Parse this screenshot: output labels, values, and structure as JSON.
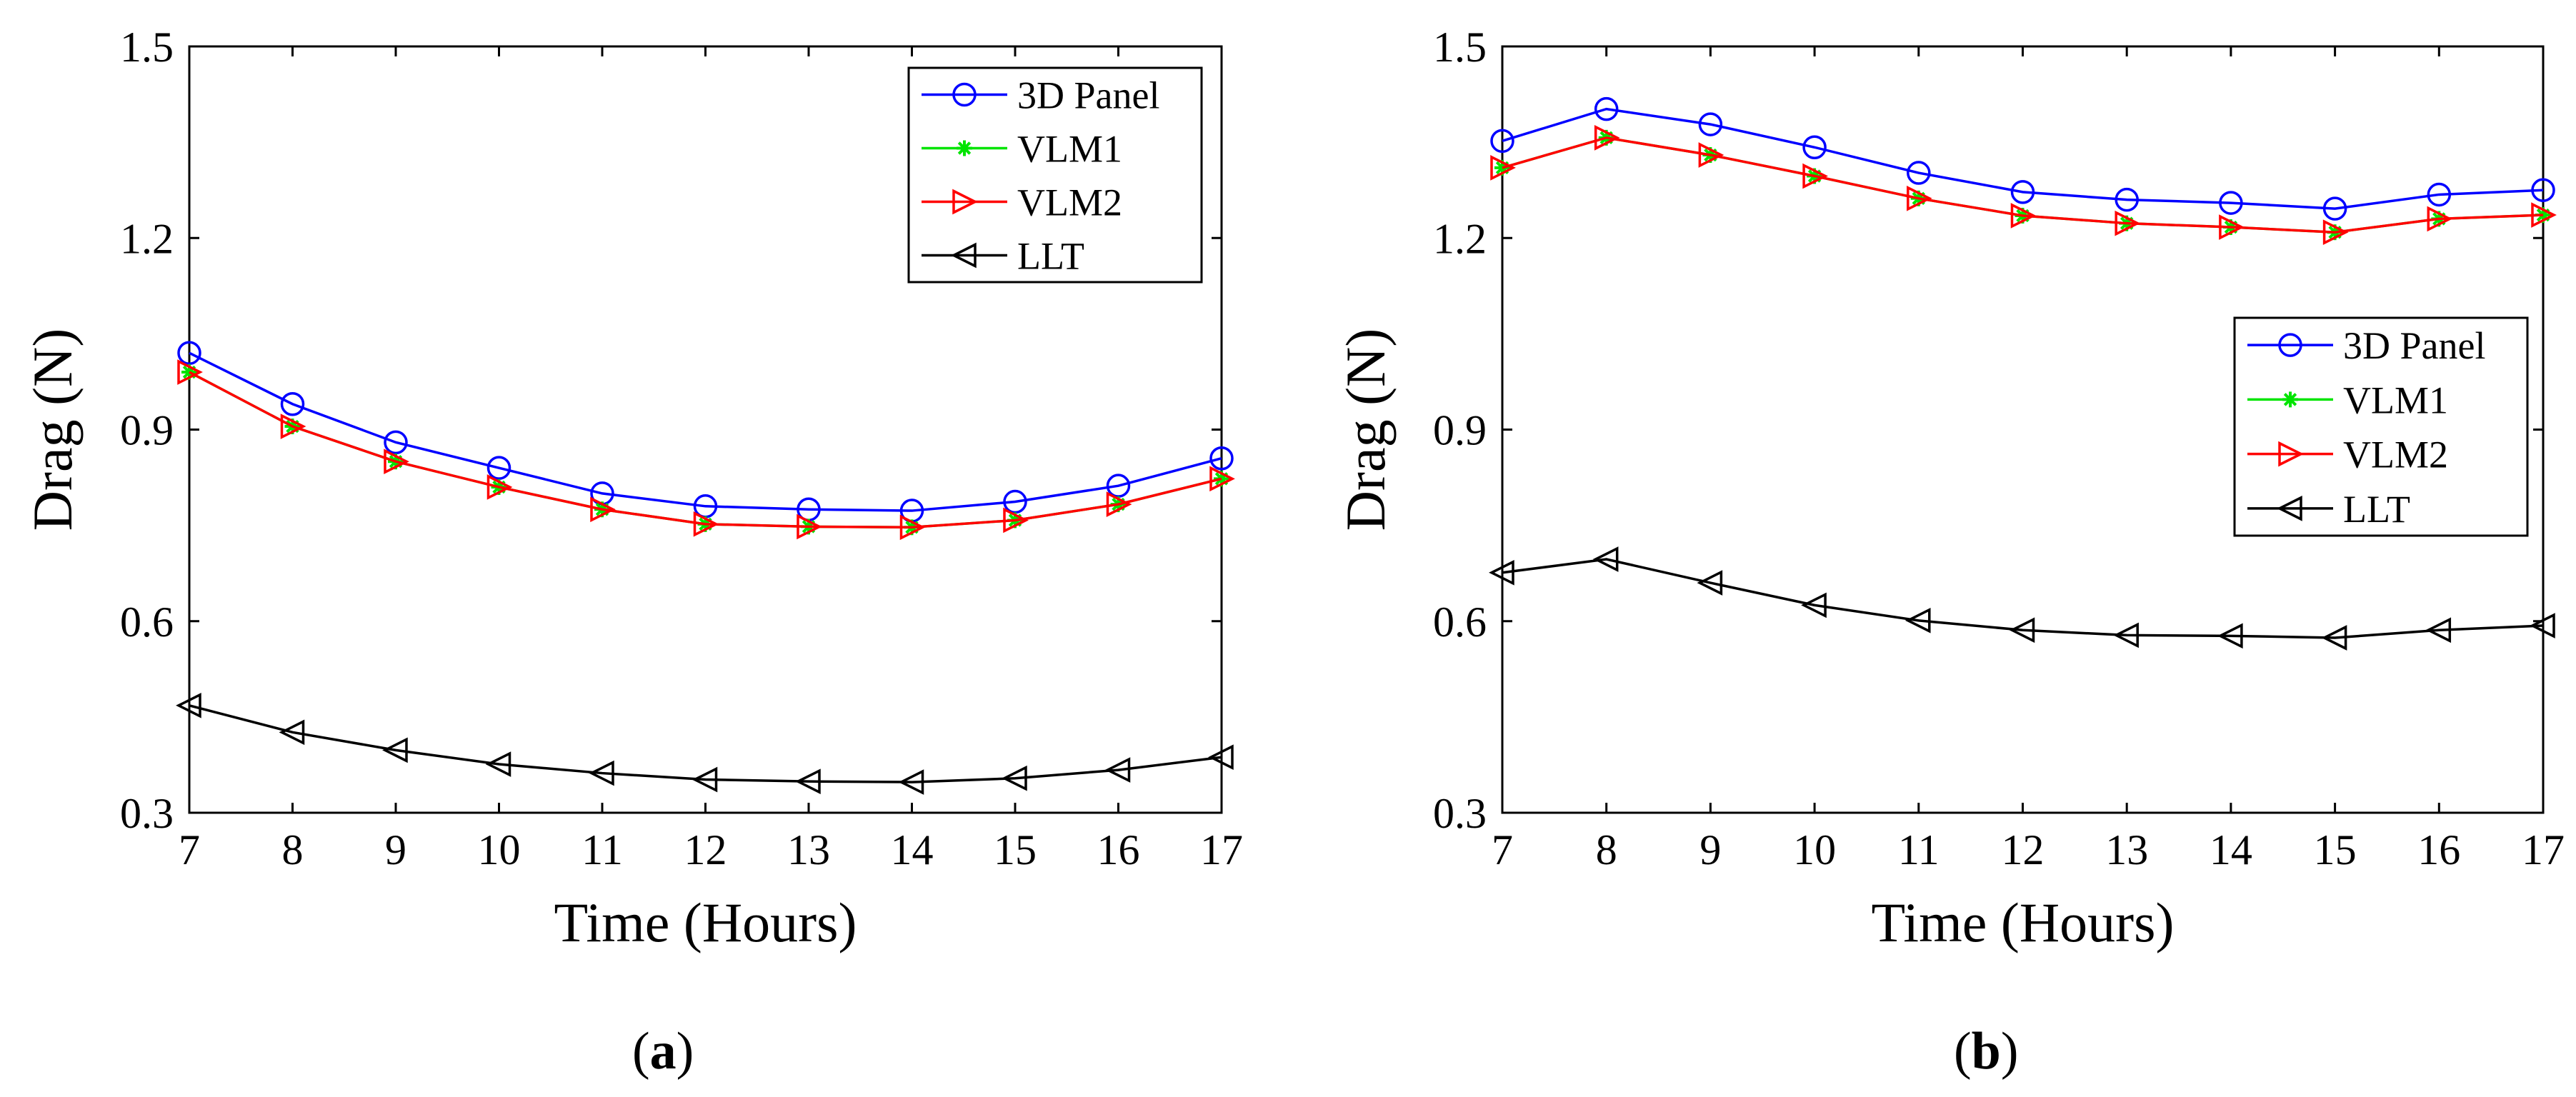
{
  "chart_data": [
    {
      "type": "line",
      "panel_label": "a",
      "caption": "(a)",
      "title": "",
      "xlabel": "Time (Hours)",
      "ylabel": "Drag (N)",
      "xlim": [
        7,
        17
      ],
      "ylim": [
        0.3,
        1.5
      ],
      "xticks": [
        7,
        8,
        9,
        10,
        11,
        12,
        13,
        14,
        15,
        16,
        17
      ],
      "yticks": [
        "0.3",
        "0.6",
        "0.9",
        "1.2",
        "1.5"
      ],
      "legend_position": "top-right",
      "x": [
        7,
        8,
        9,
        10,
        11,
        12,
        13,
        14,
        15,
        16,
        17
      ],
      "series": [
        {
          "name": "3D Panel",
          "color": "#0000ff",
          "marker": "circle",
          "values": [
            1.02,
            0.94,
            0.88,
            0.84,
            0.8,
            0.78,
            0.775,
            0.773,
            0.787,
            0.812,
            0.855
          ]
        },
        {
          "name": "VLM1",
          "color": "#00e400",
          "marker": "star",
          "values": [
            0.99,
            0.905,
            0.85,
            0.81,
            0.775,
            0.752,
            0.748,
            0.747,
            0.758,
            0.783,
            0.823
          ]
        },
        {
          "name": "VLM2",
          "color": "#ff0000",
          "marker": "triangle-right",
          "values": [
            0.99,
            0.905,
            0.85,
            0.81,
            0.775,
            0.752,
            0.748,
            0.747,
            0.758,
            0.783,
            0.823
          ]
        },
        {
          "name": "LLT",
          "color": "#000000",
          "marker": "triangle-left",
          "values": [
            0.468,
            0.426,
            0.398,
            0.376,
            0.362,
            0.352,
            0.349,
            0.348,
            0.354,
            0.367,
            0.387
          ]
        }
      ]
    },
    {
      "type": "line",
      "panel_label": "b",
      "caption": "(b)",
      "title": "",
      "xlabel": "Time (Hours)",
      "ylabel": "Drag (N)",
      "xlim": [
        7,
        17
      ],
      "ylim": [
        0.3,
        1.5
      ],
      "xticks": [
        7,
        8,
        9,
        10,
        11,
        12,
        13,
        14,
        15,
        16,
        17
      ],
      "yticks": [
        "0.3",
        "0.6",
        "0.9",
        "1.2",
        "1.5"
      ],
      "legend_position": "center-right",
      "x": [
        7,
        8,
        9,
        10,
        11,
        12,
        13,
        14,
        15,
        16,
        17
      ],
      "series": [
        {
          "name": "3D Panel",
          "color": "#0000ff",
          "marker": "circle",
          "values": [
            1.352,
            1.402,
            1.378,
            1.342,
            1.302,
            1.272,
            1.26,
            1.255,
            1.246,
            1.268,
            1.275
          ]
        },
        {
          "name": "VLM1",
          "color": "#00e400",
          "marker": "star",
          "values": [
            1.31,
            1.357,
            1.33,
            1.297,
            1.262,
            1.235,
            1.223,
            1.217,
            1.209,
            1.23,
            1.236
          ]
        },
        {
          "name": "VLM2",
          "color": "#ff0000",
          "marker": "triangle-right",
          "values": [
            1.31,
            1.357,
            1.33,
            1.297,
            1.262,
            1.235,
            1.223,
            1.217,
            1.209,
            1.23,
            1.236
          ]
        },
        {
          "name": "LLT",
          "color": "#000000",
          "marker": "triangle-left",
          "values": [
            0.676,
            0.697,
            0.66,
            0.625,
            0.601,
            0.586,
            0.578,
            0.577,
            0.574,
            0.586,
            0.593
          ]
        }
      ]
    }
  ]
}
